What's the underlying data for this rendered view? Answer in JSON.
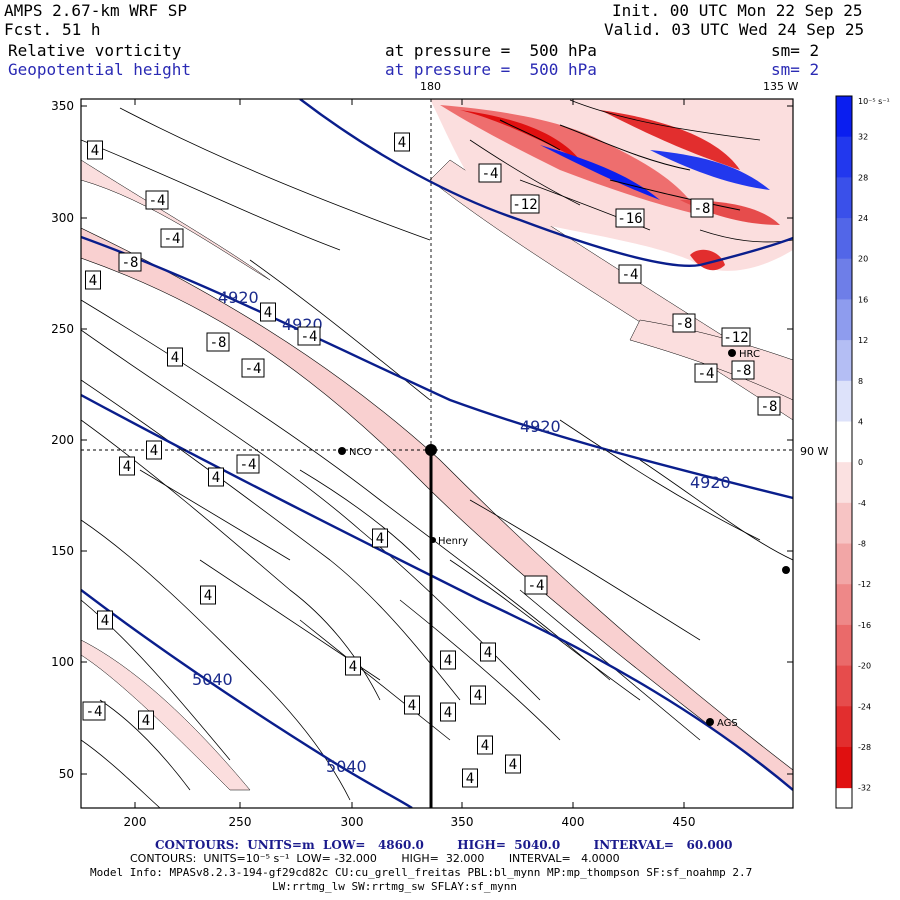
{
  "header": {
    "model_label": "AMPS 2.67-km WRF SP",
    "forecast_label": "Fcst.",
    "forecast_hours": "51 h",
    "init_line": "Init. 00 UTC Mon 22 Sep 25",
    "valid_line": "Valid. 03 UTC Wed 24 Sep 25",
    "field1_name": "Relative vorticity",
    "field1_level": "at pressure =  500 hPa",
    "field1_sm": "sm= 2",
    "field2_name": "Geopotential height",
    "field2_level": "at pressure =  500 hPa",
    "field2_sm": "sm= 2"
  },
  "map": {
    "lon_label_top_180": "180",
    "lon_label_top_135w": "135 W",
    "lon_label_right_90w": "90 W",
    "x_ticks": [
      "200",
      "250",
      "300",
      "350",
      "400",
      "450"
    ],
    "y_ticks": [
      "50",
      "100",
      "150",
      "200",
      "250",
      "300",
      "350"
    ],
    "stations": [
      {
        "name": "NCO"
      },
      {
        "name": "Henry"
      },
      {
        "name": "HRC"
      },
      {
        "name": "AGS"
      }
    ],
    "height_contour_labels": [
      "4920",
      "4920",
      "4920",
      "4920",
      "5040",
      "5040"
    ],
    "vorticity_labels": [
      "4",
      "-4",
      "-4",
      "-8",
      "4",
      "4",
      "-8",
      "-4",
      "-4",
      "-4",
      "4",
      "-4",
      "-12",
      "-16",
      "-8",
      "-4",
      "-8",
      "-12",
      "-4",
      "-8",
      "-8",
      "4",
      "4",
      "4",
      "-4",
      "4",
      "4",
      "4",
      "4",
      "4",
      "4",
      "4",
      "-4",
      "4",
      "4",
      "4",
      "4",
      "4",
      "4",
      "4"
    ]
  },
  "colorbar": {
    "unit_label": "10⁻⁵ s⁻¹",
    "ticks": [
      "32",
      "28",
      "24",
      "20",
      "16",
      "12",
      "8",
      "4",
      "0",
      "-4",
      "-8",
      "-12",
      "-16",
      "-20",
      "-24",
      "-28",
      "-32"
    ],
    "colors": [
      "#0a1ef0",
      "#2238ee",
      "#3a50ea",
      "#5266e8",
      "#6e7ee8",
      "#8e9cee",
      "#b4bef4",
      "#dde2fa",
      "#ffffff",
      "#fbe1e1",
      "#f7c4c4",
      "#f2a6a6",
      "#ee8888",
      "#ea6a6a",
      "#e64c4c",
      "#e22e2e",
      "#e01010"
    ]
  },
  "footer": {
    "line1_contours": "CONTOURS:  UNITS=m  LOW=   4860.0        HIGH=  5040.0        INTERVAL=   60.000",
    "line2_contours": "CONTOURS:  UNITS=10⁻⁵ s⁻¹  LOW= -32.000       HIGH=  32.000       INTERVAL=   4.0000",
    "model_info": "Model Info: MPASv8.2.3-194-gf29cd82c CU:cu_grell_freitas PBL:bl_mynn MP:mp_thompson SF:sf_noahmp 2.7",
    "physics": "LW:rrtmg_lw SW:rrtmg_sw SFLAY:sf_mynn"
  }
}
